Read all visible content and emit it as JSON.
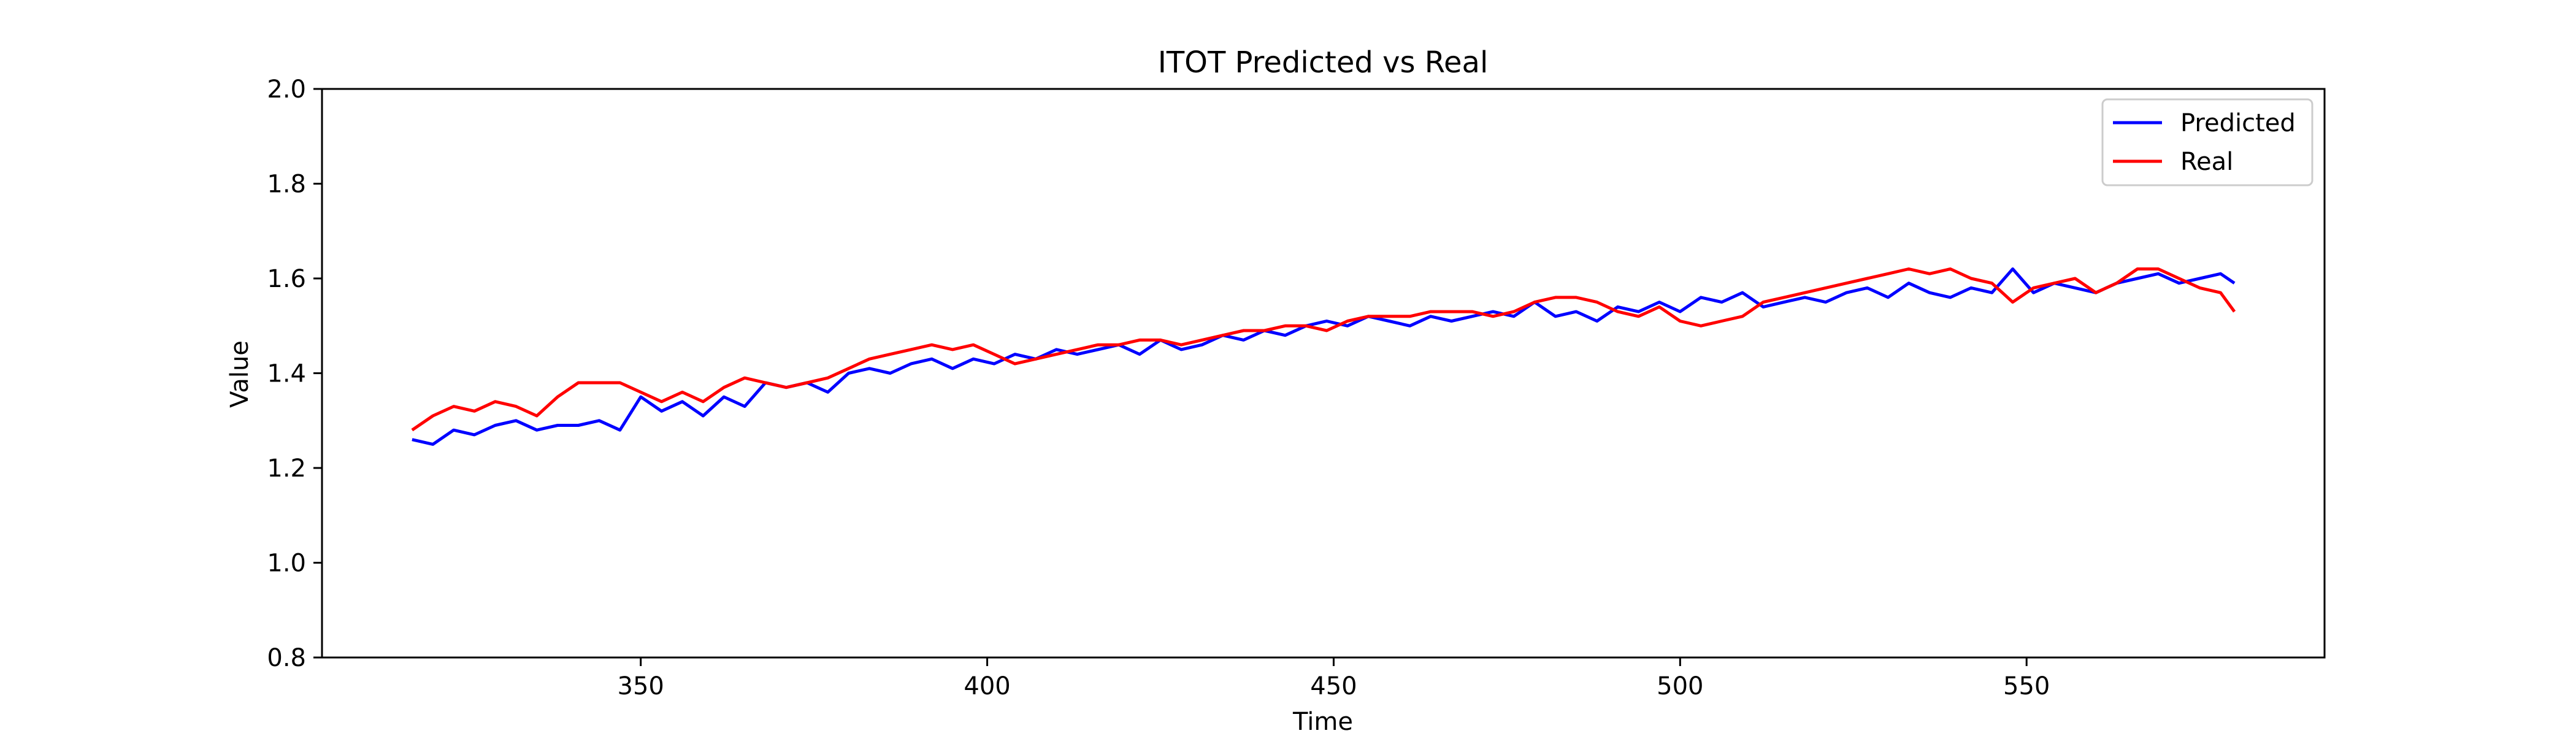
{
  "chart_data": {
    "type": "line",
    "title": "ITOT Predicted vs Real",
    "xlabel": "Time",
    "ylabel": "Value",
    "xlim": [
      304,
      593
    ],
    "ylim": [
      0.8,
      2.0
    ],
    "xticks": [
      350,
      400,
      450,
      500,
      550
    ],
    "yticks": [
      0.8,
      1.0,
      1.2,
      1.4,
      1.6,
      1.8,
      2.0
    ],
    "ytick_labels": [
      "0.8",
      "1.0",
      "1.2",
      "1.4",
      "1.6",
      "1.8",
      "2.0"
    ],
    "grid": false,
    "legend_position": "top-right",
    "x": [
      317,
      320,
      323,
      326,
      329,
      332,
      335,
      338,
      341,
      344,
      347,
      350,
      353,
      356,
      359,
      362,
      365,
      368,
      371,
      374,
      377,
      380,
      383,
      386,
      389,
      392,
      395,
      398,
      401,
      404,
      407,
      410,
      413,
      416,
      419,
      422,
      425,
      428,
      431,
      434,
      437,
      440,
      443,
      446,
      449,
      452,
      455,
      458,
      461,
      464,
      467,
      470,
      473,
      476,
      479,
      482,
      485,
      488,
      491,
      494,
      497,
      500,
      503,
      506,
      509,
      512,
      515,
      518,
      521,
      524,
      527,
      530,
      533,
      536,
      539,
      542,
      545,
      548,
      551,
      554,
      557,
      560,
      563,
      566,
      569,
      572,
      575,
      578,
      580
    ],
    "series": [
      {
        "name": "Predicted",
        "color": "#0000ff",
        "values": [
          1.26,
          1.25,
          1.28,
          1.27,
          1.29,
          1.3,
          1.28,
          1.29,
          1.29,
          1.3,
          1.28,
          1.35,
          1.32,
          1.34,
          1.31,
          1.35,
          1.33,
          1.38,
          1.37,
          1.38,
          1.36,
          1.4,
          1.41,
          1.4,
          1.42,
          1.43,
          1.41,
          1.43,
          1.42,
          1.44,
          1.43,
          1.45,
          1.44,
          1.45,
          1.46,
          1.44,
          1.47,
          1.45,
          1.46,
          1.48,
          1.47,
          1.49,
          1.48,
          1.5,
          1.51,
          1.5,
          1.52,
          1.51,
          1.5,
          1.52,
          1.51,
          1.52,
          1.53,
          1.52,
          1.55,
          1.52,
          1.53,
          1.51,
          1.54,
          1.53,
          1.55,
          1.53,
          1.56,
          1.55,
          1.57,
          1.54,
          1.55,
          1.56,
          1.55,
          1.57,
          1.58,
          1.56,
          1.59,
          1.57,
          1.56,
          1.58,
          1.57,
          1.62,
          1.57,
          1.59,
          1.58,
          1.57,
          1.59,
          1.6,
          1.61,
          1.59,
          1.6,
          1.61,
          1.59
        ]
      },
      {
        "name": "Real",
        "color": "#ff0000",
        "values": [
          1.28,
          1.31,
          1.33,
          1.32,
          1.34,
          1.33,
          1.31,
          1.35,
          1.38,
          1.38,
          1.38,
          1.36,
          1.34,
          1.36,
          1.34,
          1.37,
          1.39,
          1.38,
          1.37,
          1.38,
          1.39,
          1.41,
          1.43,
          1.44,
          1.45,
          1.46,
          1.45,
          1.46,
          1.44,
          1.42,
          1.43,
          1.44,
          1.45,
          1.46,
          1.46,
          1.47,
          1.47,
          1.46,
          1.47,
          1.48,
          1.49,
          1.49,
          1.5,
          1.5,
          1.49,
          1.51,
          1.52,
          1.52,
          1.52,
          1.53,
          1.53,
          1.53,
          1.52,
          1.53,
          1.55,
          1.56,
          1.56,
          1.55,
          1.53,
          1.52,
          1.54,
          1.51,
          1.5,
          1.51,
          1.52,
          1.55,
          1.56,
          1.57,
          1.58,
          1.59,
          1.6,
          1.61,
          1.62,
          1.61,
          1.62,
          1.6,
          1.59,
          1.55,
          1.58,
          1.59,
          1.6,
          1.57,
          1.59,
          1.62,
          1.62,
          1.6,
          1.58,
          1.57,
          1.53
        ]
      }
    ]
  }
}
